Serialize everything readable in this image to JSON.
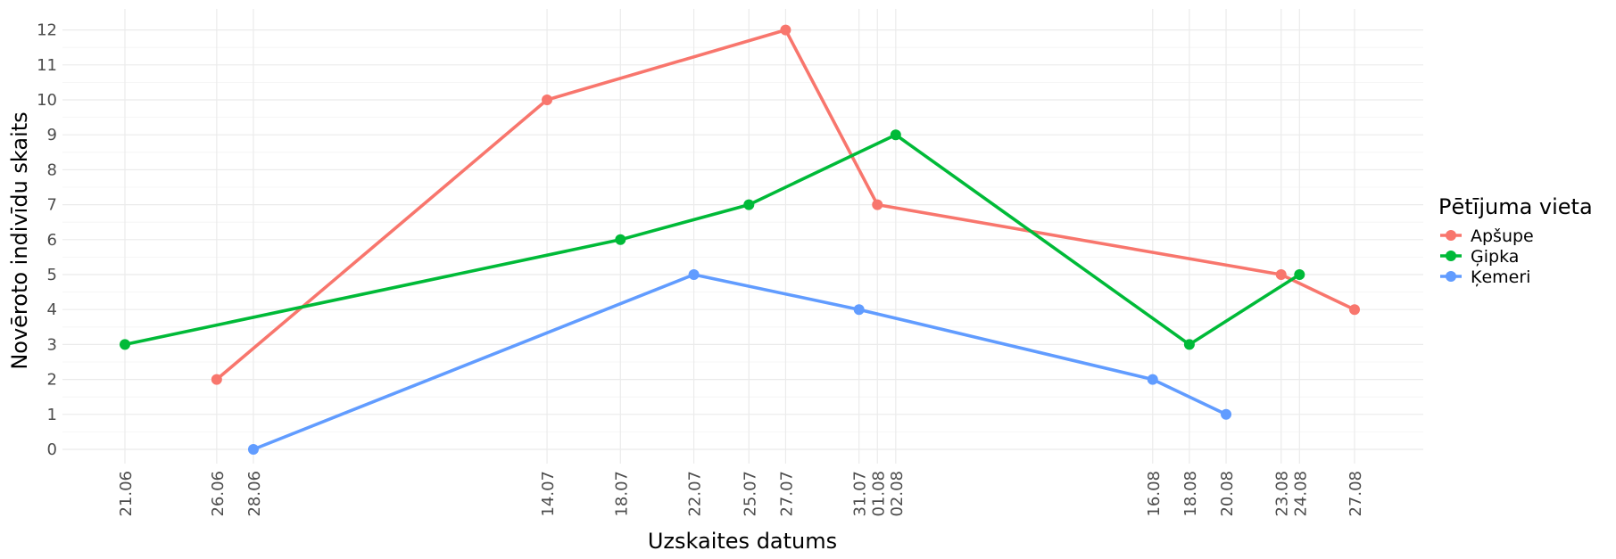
{
  "chart_data": {
    "type": "line",
    "xlabel": "Uzskaites datums",
    "ylabel": "Novēroto indivīdu skaits",
    "ylim": [
      0,
      12
    ],
    "yticks": [
      "0",
      "1",
      "2",
      "3",
      "4",
      "5",
      "6",
      "7",
      "8",
      "9",
      "10",
      "11",
      "12"
    ],
    "x_dates": [
      "21.06",
      "26.06",
      "28.06",
      "14.07",
      "18.07",
      "22.07",
      "25.07",
      "27.07",
      "31.07",
      "01.08",
      "02.08",
      "16.08",
      "18.08",
      "20.08",
      "23.08",
      "24.08",
      "27.08"
    ],
    "grid": true,
    "legend": {
      "title": "Pētījuma vieta",
      "position": "right"
    },
    "series": [
      {
        "name": "Apšupe",
        "color": "#F8766D",
        "points": [
          {
            "x": "26.06",
            "y": 2
          },
          {
            "x": "14.07",
            "y": 10
          },
          {
            "x": "27.07",
            "y": 12
          },
          {
            "x": "01.08",
            "y": 7
          },
          {
            "x": "23.08",
            "y": 5
          },
          {
            "x": "27.08",
            "y": 4
          }
        ]
      },
      {
        "name": "Ģipka",
        "color": "#00BA38",
        "points": [
          {
            "x": "21.06",
            "y": 3
          },
          {
            "x": "18.07",
            "y": 6
          },
          {
            "x": "25.07",
            "y": 7
          },
          {
            "x": "02.08",
            "y": 9
          },
          {
            "x": "18.08",
            "y": 3
          },
          {
            "x": "24.08",
            "y": 5
          }
        ]
      },
      {
        "name": "Ķemeri",
        "color": "#619CFF",
        "points": [
          {
            "x": "28.06",
            "y": 0
          },
          {
            "x": "22.07",
            "y": 5
          },
          {
            "x": "31.07",
            "y": 4
          },
          {
            "x": "16.08",
            "y": 2
          },
          {
            "x": "20.08",
            "y": 1
          }
        ]
      }
    ]
  }
}
